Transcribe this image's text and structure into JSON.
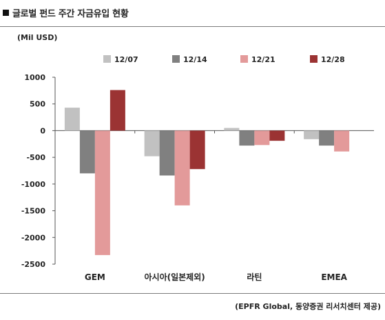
{
  "header": {
    "title": "글로벌 펀드 주간 자금유입 현황"
  },
  "unit_label": "(Mil USD)",
  "source": "(EPFR Global, 동양증권 리서치센터 제공)",
  "colors": {
    "s1": "#c1c1c1",
    "s2": "#808080",
    "s3": "#e39a9a",
    "s4": "#9b3333",
    "axis": "#555555",
    "frame_rule": "#7a7a7a"
  },
  "chart_data": {
    "type": "bar",
    "title": "",
    "xlabel": "",
    "ylabel": "(Mil USD)",
    "ylim": [
      -2500,
      1000
    ],
    "yticks": [
      1000,
      500,
      0,
      -500,
      -1000,
      -1500,
      -2000,
      -2500
    ],
    "ytick_labels": [
      "1000",
      "500",
      "0",
      "-500",
      "-1000",
      "-1500",
      "-2000",
      "-2500"
    ],
    "grid": false,
    "legend_position": "top",
    "categories": [
      "GEM",
      "아시아(일본제외)",
      "라틴",
      "EMEA"
    ],
    "series": [
      {
        "name": "12/07",
        "color": "#c1c1c1",
        "values": [
          430,
          -480,
          50,
          -160
        ]
      },
      {
        "name": "12/14",
        "color": "#808080",
        "values": [
          -800,
          -840,
          -280,
          -280
        ]
      },
      {
        "name": "12/21",
        "color": "#e39a9a",
        "values": [
          -2330,
          -1400,
          -270,
          -390
        ]
      },
      {
        "name": "12/28",
        "color": "#9b3333",
        "values": [
          760,
          -720,
          -190,
          null
        ]
      }
    ]
  }
}
